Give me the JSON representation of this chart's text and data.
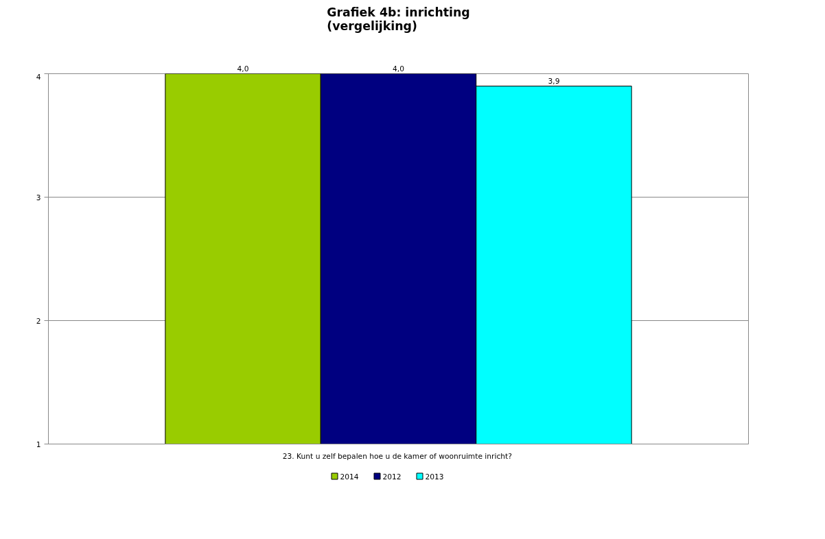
{
  "chart_data": {
    "type": "bar",
    "title": "Grafiek 4b: inrichting\n(vergelijking)",
    "categories": [
      "23. Kunt u zelf bepalen hoe u de kamer of  woonruimte inricht?"
    ],
    "series": [
      {
        "name": "2014",
        "color": "#99cc00",
        "values": [
          4.0
        ],
        "value_labels": [
          "4,0"
        ]
      },
      {
        "name": "2012",
        "color": "#000080",
        "values": [
          4.0
        ],
        "value_labels": [
          "4,0"
        ]
      },
      {
        "name": "2013",
        "color": "#00ffff",
        "values": [
          3.9
        ],
        "value_labels": [
          "3,9"
        ]
      }
    ],
    "ylim": [
      1,
      4
    ],
    "yticks": [
      1,
      2,
      3,
      4
    ],
    "grid": "y",
    "legend": "bottom"
  }
}
